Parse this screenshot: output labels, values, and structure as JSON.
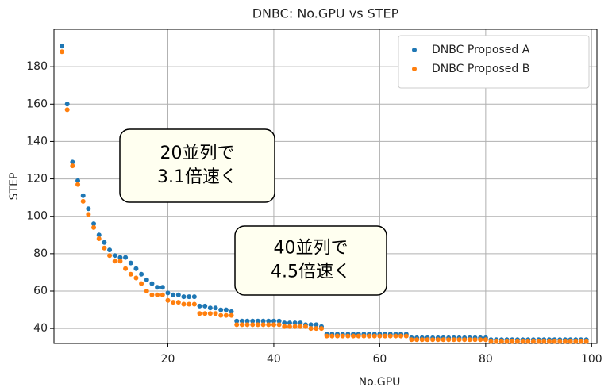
{
  "chart_data": {
    "type": "scatter",
    "title": "DNBC: No.GPU vs STEP",
    "x_label": "No.GPU",
    "y_label": "STEP",
    "x": [
      0,
      1,
      2,
      3,
      4,
      5,
      6,
      7,
      8,
      9,
      10,
      11,
      12,
      13,
      14,
      15,
      16,
      17,
      18,
      19,
      20,
      21,
      22,
      23,
      24,
      25,
      26,
      27,
      28,
      29,
      30,
      31,
      32,
      33,
      34,
      35,
      36,
      37,
      38,
      39,
      40,
      41,
      42,
      43,
      44,
      45,
      46,
      47,
      48,
      49,
      50,
      51,
      52,
      53,
      54,
      55,
      56,
      57,
      58,
      59,
      60,
      61,
      62,
      63,
      64,
      65,
      66,
      67,
      68,
      69,
      70,
      71,
      72,
      73,
      74,
      75,
      76,
      77,
      78,
      79,
      80,
      81,
      82,
      83,
      84,
      85,
      86,
      87,
      88,
      89,
      90,
      91,
      92,
      93,
      94,
      95,
      96,
      97,
      98,
      99
    ],
    "series": [
      {
        "name": "DNBC Proposed A",
        "color": "#1f77b4",
        "values": [
          191,
          160,
          129,
          119,
          111,
          104,
          96,
          90,
          86,
          82,
          79,
          78,
          78,
          75,
          72,
          69,
          66,
          64,
          62,
          62,
          59,
          58,
          58,
          57,
          57,
          57,
          52,
          52,
          51,
          51,
          50,
          50,
          49,
          44,
          44,
          44,
          44,
          44,
          44,
          44,
          44,
          44,
          43,
          43,
          43,
          43,
          42,
          42,
          42,
          41,
          37,
          37,
          37,
          37,
          37,
          37,
          37,
          37,
          37,
          37,
          37,
          37,
          37,
          37,
          37,
          37,
          35,
          35,
          35,
          35,
          35,
          35,
          35,
          35,
          35,
          35,
          35,
          35,
          35,
          35,
          35,
          34,
          34,
          34,
          34,
          34,
          34,
          34,
          34,
          34,
          34,
          34,
          34,
          34,
          34,
          34,
          34,
          34,
          34,
          34
        ]
      },
      {
        "name": "DNBC Proposed B",
        "color": "#ff7f0e",
        "values": [
          188,
          157,
          127,
          117,
          108,
          101,
          94,
          88,
          83,
          79,
          76,
          76,
          72,
          69,
          67,
          64,
          60,
          58,
          58,
          58,
          55,
          54,
          54,
          53,
          53,
          53,
          48,
          48,
          48,
          48,
          47,
          47,
          47,
          42,
          42,
          42,
          42,
          42,
          42,
          42,
          42,
          42,
          41,
          41,
          41,
          41,
          41,
          40,
          40,
          40,
          36,
          36,
          36,
          36,
          36,
          36,
          36,
          36,
          36,
          36,
          36,
          36,
          36,
          36,
          36,
          36,
          34,
          34,
          34,
          34,
          34,
          34,
          34,
          34,
          34,
          34,
          34,
          34,
          34,
          34,
          34,
          33,
          33,
          33,
          33,
          33,
          33,
          33,
          33,
          33,
          33,
          33,
          33,
          33,
          33,
          33,
          33,
          33,
          33,
          33
        ]
      }
    ],
    "xlim": [
      -1.5,
      101
    ],
    "ylim": [
      32,
      200
    ],
    "xticks": [
      20,
      40,
      60,
      80,
      100
    ],
    "yticks": [
      40,
      60,
      80,
      100,
      120,
      140,
      160,
      180
    ],
    "grid": true,
    "legend": "upper right",
    "annotations": [
      {
        "lines": [
          "20並列で",
          "3.1倍速く"
        ]
      },
      {
        "lines": [
          "40並列で",
          "4.5倍速く"
        ]
      }
    ]
  }
}
